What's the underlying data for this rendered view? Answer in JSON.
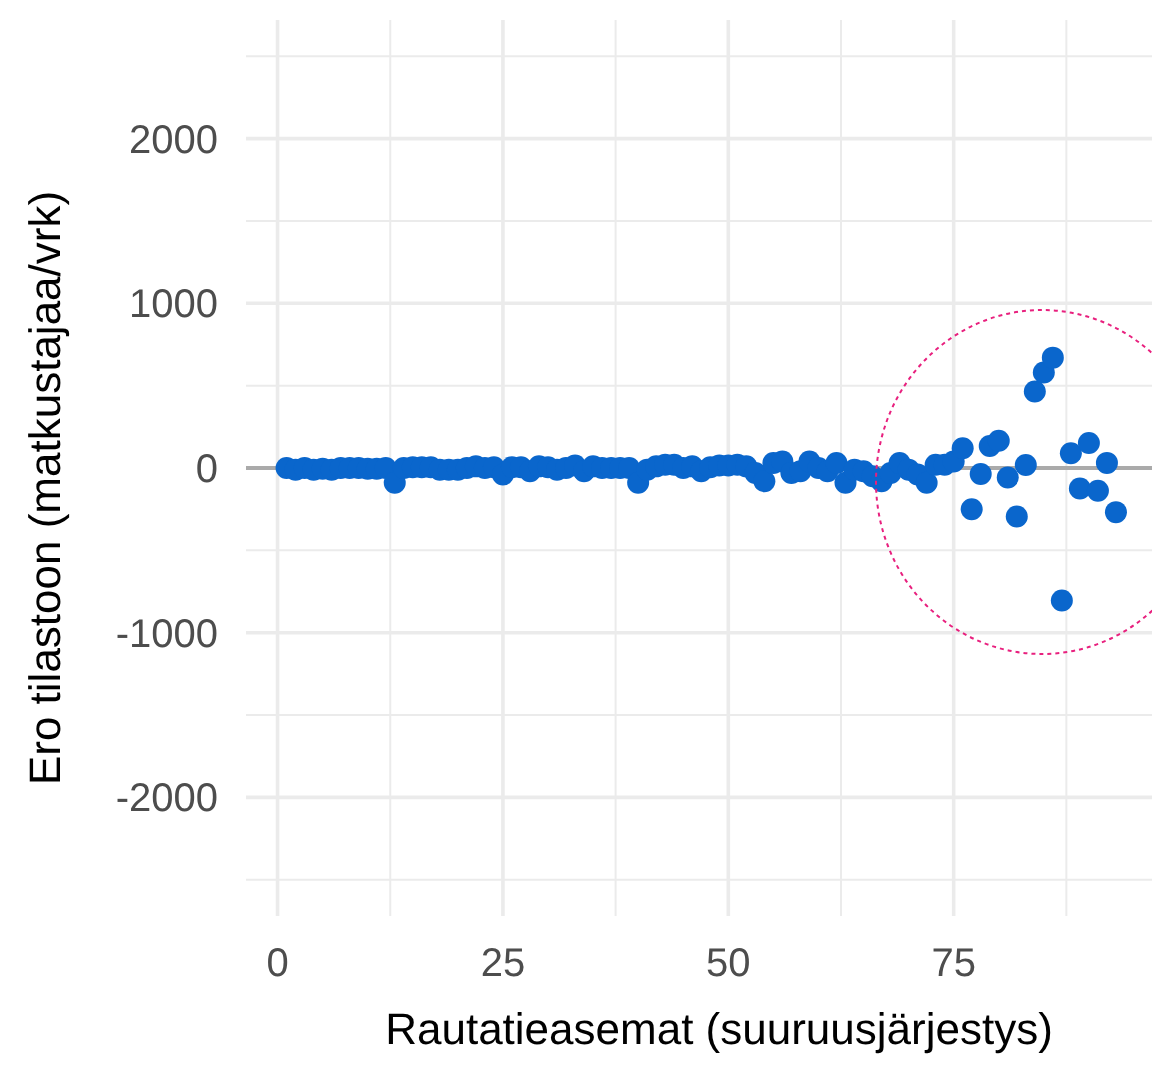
{
  "chart_data": {
    "type": "scatter",
    "xlabel": "Rautatieasemat (suuruusjärjestys)",
    "ylabel": "Ero tilastoon (matkustajaa/vrk)",
    "x": [
      1,
      2,
      3,
      4,
      5,
      6,
      7,
      8,
      9,
      10,
      11,
      12,
      13,
      14,
      15,
      16,
      17,
      18,
      19,
      20,
      21,
      22,
      23,
      24,
      25,
      26,
      27,
      28,
      29,
      30,
      31,
      32,
      33,
      34,
      35,
      36,
      37,
      38,
      39,
      40,
      41,
      42,
      43,
      44,
      45,
      46,
      47,
      48,
      49,
      50,
      51,
      52,
      53,
      54,
      55,
      56,
      57,
      58,
      59,
      60,
      61,
      62,
      63,
      64,
      65,
      66,
      67,
      68,
      69,
      70,
      71,
      72,
      73,
      74,
      75,
      76,
      77,
      78,
      79,
      80,
      81,
      82,
      83,
      84,
      85,
      86,
      87,
      88,
      89,
      90,
      91,
      92,
      93
    ],
    "series": [
      {
        "color": "#0a66cc",
        "values": [
          0,
          -10,
          0,
          -10,
          -5,
          -10,
          0,
          0,
          0,
          -5,
          -5,
          0,
          -90,
          0,
          5,
          5,
          5,
          -10,
          -10,
          -10,
          0,
          10,
          0,
          5,
          -40,
          5,
          5,
          -20,
          10,
          5,
          -10,
          0,
          15,
          -20,
          10,
          0,
          0,
          0,
          0,
          -90,
          -10,
          10,
          20,
          20,
          0,
          10,
          -20,
          5,
          15,
          15,
          20,
          10,
          -30,
          -80,
          30,
          40,
          -30,
          -20,
          40,
          0,
          -20,
          30,
          -90,
          -10,
          -20,
          -50,
          -80,
          -30,
          30,
          -10,
          -40,
          -90,
          20,
          20,
          40,
          120,
          -250,
          -36,
          134,
          165,
          -58,
          -295,
          18,
          464,
          580,
          670,
          -804,
          89,
          -125,
          152,
          -138,
          31,
          -268
        ]
      }
    ],
    "xlim": [
      -3.5,
      97
    ],
    "ylim": [
      -2720,
      2720
    ],
    "xticks": [
      0,
      {
        "value": 12.5,
        "label": null
      },
      25,
      {
        "value": 37.5,
        "label": null
      },
      50,
      {
        "value": 62.5,
        "label": null
      },
      75,
      {
        "value": 87.5,
        "label": null
      }
    ],
    "yticks": [
      {
        "value": -2500,
        "label": null
      },
      -2000,
      {
        "value": -1500,
        "label": null
      },
      -1000,
      {
        "value": -500,
        "label": null
      },
      0,
      {
        "value": 500,
        "label": null
      },
      1000,
      {
        "value": 1500,
        "label": null
      },
      2000,
      {
        "value": 2500,
        "label": null
      }
    ],
    "ref_lines": [
      {
        "axis": "y",
        "value": 0,
        "color": "#aaaaaa"
      }
    ],
    "grid": true,
    "marker": "circle"
  }
}
